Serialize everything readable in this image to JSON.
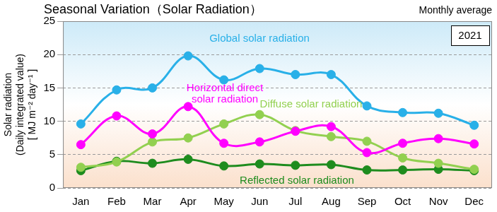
{
  "chart_data": {
    "type": "line",
    "title": "Seasonal Variation（Solar Radiation）",
    "annotations": [
      "Monthly average",
      "2021"
    ],
    "y_label": [
      "Solar radiation",
      "(Daily integrated value)",
      "[ MJ m⁻² day⁻¹ ]"
    ],
    "categories": [
      "Jan",
      "Feb",
      "Mar",
      "Apr",
      "May",
      "Jun",
      "Jul",
      "Aug",
      "Sep",
      "Oct",
      "Nov",
      "Dec"
    ],
    "series": [
      {
        "name": "Global solar radiation",
        "color": "#29b0e8",
        "marker": "circle",
        "line_style": "solid",
        "values": [
          9.6,
          14.7,
          15.0,
          19.8,
          16.2,
          17.9,
          17.0,
          17.0,
          12.3,
          11.3,
          11.2,
          9.4
        ]
      },
      {
        "name": "Horizontal direct solar radiation",
        "color": "#ff00ff",
        "marker": "circle",
        "line_style": "solid",
        "values": [
          6.5,
          10.8,
          8.1,
          12.2,
          6.7,
          6.9,
          8.5,
          9.2,
          5.3,
          6.7,
          7.4,
          6.6
        ]
      },
      {
        "name": "Diffuse solar radiation",
        "color": "#92d050",
        "marker": "circle",
        "line_style": "solid",
        "values": [
          3.1,
          3.9,
          6.9,
          7.5,
          9.6,
          11.0,
          8.6,
          7.7,
          7.0,
          4.5,
          3.7,
          2.8
        ]
      },
      {
        "name": "Reflected solar radiation",
        "color": "#1e8c1e",
        "marker": "circle",
        "line_style": "solid",
        "values": [
          2.6,
          4.0,
          3.7,
          4.3,
          3.3,
          3.6,
          3.4,
          3.5,
          2.7,
          2.7,
          2.8,
          2.6
        ]
      }
    ],
    "ylim": [
      0,
      25
    ],
    "yticks": [
      0,
      5,
      10,
      15,
      20,
      25
    ],
    "grid": true
  }
}
